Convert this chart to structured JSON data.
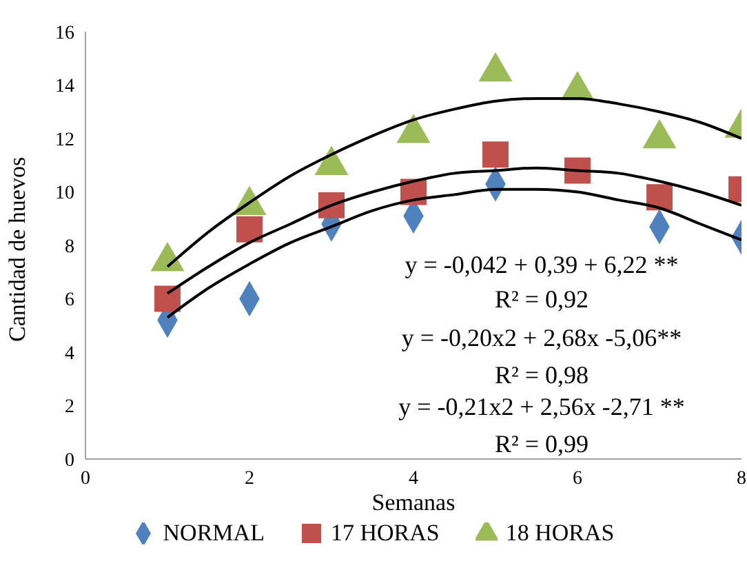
{
  "chart_data": {
    "type": "scatter",
    "xlabel": "Semanas",
    "ylabel": "Cantidad de huevos",
    "xlim": [
      0,
      8
    ],
    "xticks": [
      0,
      2,
      4,
      6,
      8
    ],
    "ylim": [
      0,
      16
    ],
    "yticks": [
      0,
      2,
      4,
      6,
      8,
      10,
      12,
      14,
      16
    ],
    "legend": "bottom",
    "annotations": [
      "y = -0,042 + 0,39 + 6,22 **",
      "R² = 0,92",
      "y = -0,20x2 + 2,68x -5,06**",
      "R² = 0,98",
      "y = -0,21x2 + 2,56x -2,71 **",
      "R² = 0,99"
    ],
    "series": [
      {
        "name": "NORMAL",
        "marker": "diamond",
        "color": "#4f81bd",
        "x": [
          1,
          2,
          3,
          4,
          5,
          6,
          7,
          8
        ],
        "values": [
          5.2,
          6.0,
          8.8,
          9.1,
          10.3,
          null,
          8.7,
          8.3
        ]
      },
      {
        "name": "17 HORAS",
        "marker": "square",
        "color": "#c0504d",
        "x": [
          1,
          2,
          3,
          4,
          5,
          6,
          7,
          8
        ],
        "values": [
          6.0,
          8.6,
          9.5,
          10.0,
          11.4,
          10.8,
          9.8,
          10.1
        ]
      },
      {
        "name": "18 HORAS",
        "marker": "triangle",
        "color": "#9bbb59",
        "x": [
          1,
          2,
          3,
          4,
          5,
          6,
          7,
          8
        ],
        "values": [
          7.4,
          9.5,
          11.0,
          12.2,
          14.5,
          13.8,
          12.0,
          12.4
        ]
      },
      {
        "type": "line",
        "color": "#000000",
        "x": [
          1,
          1.5,
          2,
          2.5,
          3,
          3.5,
          4,
          4.5,
          5,
          5.5,
          6,
          6.5,
          7,
          7.5,
          8
        ],
        "values": [
          7.2,
          8.5,
          9.6,
          10.6,
          11.4,
          12.1,
          12.7,
          13.1,
          13.4,
          13.5,
          13.5,
          13.3,
          13.0,
          12.6,
          12.0
        ]
      },
      {
        "type": "line",
        "color": "#000000",
        "x": [
          1,
          1.5,
          2,
          2.5,
          3,
          3.5,
          4,
          4.5,
          5,
          5.5,
          6,
          6.5,
          7,
          7.5,
          8
        ],
        "values": [
          6.2,
          7.2,
          8.1,
          8.8,
          9.5,
          10.0,
          10.4,
          10.7,
          10.8,
          10.9,
          10.8,
          10.7,
          10.4,
          10.0,
          9.5
        ]
      },
      {
        "type": "line",
        "color": "#000000",
        "x": [
          1,
          1.5,
          2,
          2.5,
          3,
          3.5,
          4,
          4.5,
          5,
          5.5,
          6,
          6.5,
          7,
          7.5,
          8
        ],
        "values": [
          5.3,
          6.4,
          7.3,
          8.1,
          8.7,
          9.3,
          9.7,
          9.9,
          10.1,
          10.1,
          10.0,
          9.7,
          9.4,
          8.8,
          8.2
        ]
      }
    ]
  }
}
